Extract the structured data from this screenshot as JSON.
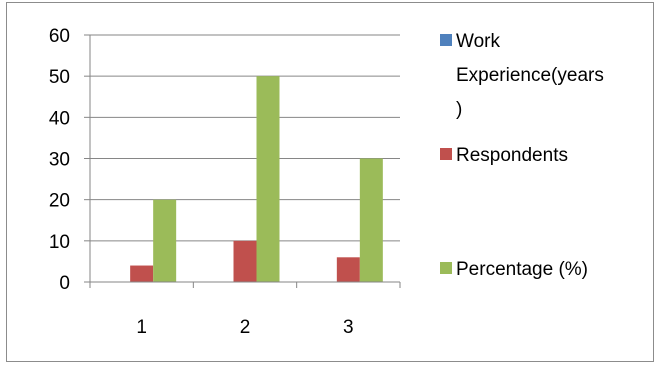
{
  "chart_data": {
    "type": "bar",
    "categories": [
      "1",
      "2",
      "3"
    ],
    "series": [
      {
        "name": "Work Experience(years)",
        "values": [
          0,
          0,
          0
        ],
        "color": "#4f81bd"
      },
      {
        "name": "Respondents",
        "values": [
          4,
          10,
          6
        ],
        "color": "#c0504d"
      },
      {
        "name": "Percentage (%)",
        "values": [
          20,
          50,
          30
        ],
        "color": "#9bbb59"
      }
    ],
    "ylim": [
      0,
      60
    ],
    "yticks": [
      0,
      10,
      20,
      30,
      40,
      50,
      60
    ],
    "grid": true,
    "legend_position": "right",
    "legend_lines": [
      [
        "Work",
        "Experience(years",
        ")"
      ],
      [
        "Respondents"
      ],
      [
        "Percentage (%)"
      ]
    ]
  }
}
